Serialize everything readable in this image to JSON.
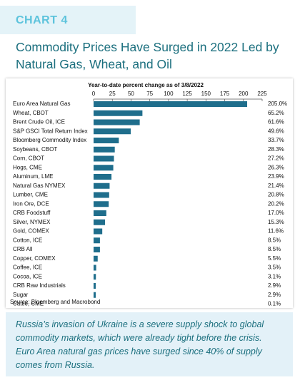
{
  "label": "CHART 4",
  "title": "Commodity Prices Have Surged in 2022 Led by Natural Gas, Wheat, and Oil",
  "chart_data": {
    "type": "bar",
    "orientation": "horizontal",
    "subtitle": "Year-to-date percent change as of 3/8/2022",
    "categories": [
      "Euro Area Natural Gas",
      "Wheat, CBOT",
      "Brent Crude Oil, ICE",
      "S&P GSCI Total Return Index",
      "Bloomberg Commodity Index",
      "Soybeans, CBOT",
      "Corn, CBOT",
      "Hogs, CME",
      "Aluminum, LME",
      "Natural Gas NYMEX",
      "Lumber, CME",
      "Iron Ore, DCE",
      "CRB Foodstuff",
      "Silver, NYMEX",
      "Gold, COMEX",
      "Cotton, ICE",
      "CRB All",
      "Copper, COMEX",
      "Coffee, ICE",
      "Cocoa, ICE",
      "CRB Raw Industrials",
      "Sugar",
      "Cattle, CME"
    ],
    "values": [
      205.0,
      65.2,
      61.6,
      49.6,
      33.7,
      28.3,
      27.2,
      26.3,
      23.9,
      21.4,
      20.8,
      20.2,
      17.0,
      15.3,
      11.6,
      8.5,
      8.5,
      5.5,
      3.5,
      3.1,
      2.9,
      2.9,
      0.1
    ],
    "value_labels": [
      "205.0%",
      "65.2%",
      "61.6%",
      "49.6%",
      "33.7%",
      "28.3%",
      "27.2%",
      "26.3%",
      "23.9%",
      "21.4%",
      "20.8%",
      "20.2%",
      "17.0%",
      "15.3%",
      "11.6%",
      "8.5%",
      "8.5%",
      "5.5%",
      "3.5%",
      "3.1%",
      "2.9%",
      "2.9%",
      "0.1%"
    ],
    "color": "#1f6e8c",
    "xlim": [
      0,
      225
    ],
    "xticks": [
      0,
      25,
      50,
      75,
      100,
      125,
      150,
      175,
      200,
      225
    ],
    "source": "Source: Bloomberg and Macrobond"
  },
  "callout": "Russia’s invasion of Ukraine is a severe supply shock to global commodity markets, which were already tight before the crisis. Euro Area natural gas prices have surged since 40% of supply comes from Russia."
}
